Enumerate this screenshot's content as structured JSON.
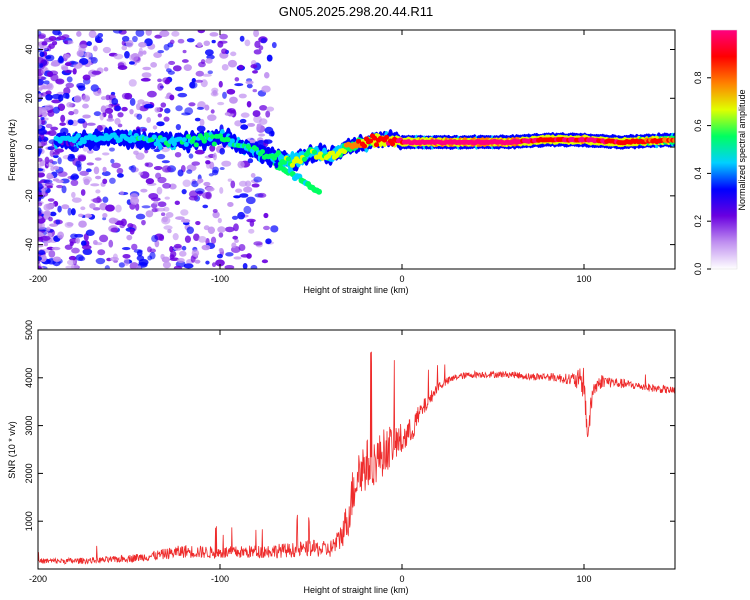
{
  "title": "GN05.2025.298.20.44.R11",
  "chart_data": [
    {
      "type": "heatmap",
      "xlabel": "Height of straight line (km)",
      "ylabel": "Frequency (Hz)",
      "xlim": [
        -200,
        150
      ],
      "ylim": [
        -50,
        48
      ],
      "x_ticks": [
        -200,
        -100,
        0,
        100
      ],
      "y_ticks": [
        -40,
        -20,
        0,
        20,
        40
      ],
      "colorbar": {
        "label": "Normalized spectral amplitude",
        "range": [
          0,
          1
        ],
        "ticks": [
          "0.0",
          "0.2",
          "0.4",
          "0.6",
          "0.8"
        ],
        "colors": [
          "#ffffff",
          "#c090f0",
          "#6a00e0",
          "#0000ff",
          "#00d0ff",
          "#00ff60",
          "#e0ff00",
          "#ff8000",
          "#ff0000",
          "#ff0080"
        ]
      },
      "ridge": {
        "x": [
          -180,
          -160,
          -140,
          -120,
          -100,
          -90,
          -80,
          -70,
          -60,
          -50,
          -40,
          -30,
          -20,
          -10,
          0,
          20,
          40,
          60,
          80,
          100,
          120,
          150
        ],
        "frequency": [
          3,
          4,
          3,
          2,
          4,
          1,
          -2,
          -4,
          -6,
          -2,
          -4,
          0,
          2,
          3,
          2,
          2,
          2,
          2,
          3,
          3,
          2,
          3
        ],
        "amplitude": [
          0.35,
          0.4,
          0.45,
          0.42,
          0.5,
          0.45,
          0.45,
          0.5,
          0.55,
          0.55,
          0.6,
          0.7,
          0.8,
          0.85,
          0.9,
          0.95,
          0.95,
          0.95,
          0.85,
          0.9,
          0.85,
          0.75
        ]
      }
    },
    {
      "type": "line",
      "xlabel": "Height of straight line (km)",
      "ylabel": "SNR (10 * v/v)",
      "xlim": [
        -200,
        150
      ],
      "ylim": [
        0,
        5000
      ],
      "x_ticks": [
        -200,
        -100,
        0,
        100
      ],
      "y_ticks": [
        1000,
        2000,
        3000,
        4000,
        5000
      ],
      "series": [
        {
          "name": "SNR",
          "color": "#ee2b2b",
          "x": [
            -200,
            -180,
            -160,
            -140,
            -120,
            -100,
            -80,
            -60,
            -50,
            -40,
            -35,
            -30,
            -25,
            -20,
            -15,
            -10,
            -5,
            0,
            5,
            10,
            15,
            20,
            25,
            30,
            40,
            50,
            60,
            70,
            80,
            90,
            95,
            100,
            102,
            105,
            110,
            120,
            130,
            140,
            150
          ],
          "mean": [
            150,
            150,
            170,
            230,
            330,
            300,
            320,
            350,
            380,
            350,
            500,
            900,
            1800,
            2000,
            2100,
            2300,
            2500,
            2600,
            2800,
            3200,
            3500,
            3800,
            3900,
            4000,
            4050,
            4050,
            4050,
            4000,
            4000,
            3950,
            3900,
            3800,
            2700,
            3700,
            3900,
            3850,
            3800,
            3750,
            3700
          ],
          "noise": [
            80,
            90,
            100,
            130,
            200,
            180,
            200,
            220,
            250,
            250,
            350,
            600,
            900,
            800,
            700,
            700,
            600,
            500,
            400,
            300,
            200,
            150,
            120,
            100,
            100,
            100,
            100,
            110,
            120,
            150,
            250,
            500,
            400,
            300,
            200,
            150,
            120,
            120,
            120
          ]
        }
      ]
    }
  ]
}
